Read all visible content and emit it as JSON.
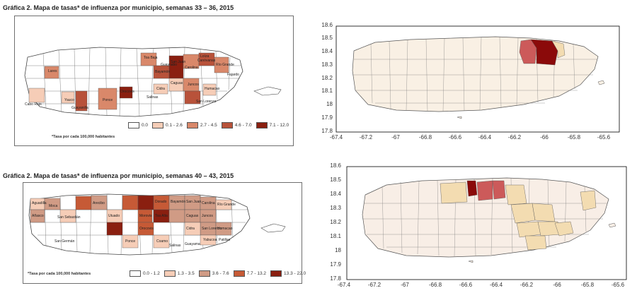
{
  "top": {
    "title": "Gráfica 2. Mapa de tasas* de influenza por municipio, semanas 33 – 36, 2015",
    "footnote": "*Tasa por cada 100,000 habitantes",
    "legend": [
      {
        "label": "0.0",
        "color": "#ffffff"
      },
      {
        "label": "0.1 - 2.6",
        "color": "#f6cdb7"
      },
      {
        "label": "2.7 - 4.5",
        "color": "#d9886a"
      },
      {
        "label": "4.6 - 7.0",
        "color": "#b8523a"
      },
      {
        "label": "7.1 - 12.0",
        "color": "#8a1f10"
      }
    ],
    "labels": [
      "Cabo Rojo",
      "Guayanilla",
      "Yauco",
      "Lares",
      "Ponce",
      "Orocovis",
      "Cidra",
      "Salinas",
      "Río Grande",
      "Fajardo",
      "Canóvanas",
      "Juncos",
      "San Juan",
      "Bayamón",
      "Caguas",
      "Guaynabo",
      "Carolina",
      "Loíza",
      "Humacao",
      "San Lorenzo",
      "Toa Baja"
    ],
    "right_map": {
      "yticks": [
        "18.6",
        "18.5",
        "18.4",
        "18.3",
        "18.2",
        "18.1",
        "18",
        "17.9",
        "17.8"
      ],
      "xticks": [
        "-67.4",
        "-67.2",
        "-67",
        "-66.8",
        "-66.6",
        "-66.4",
        "-66.2",
        "-66",
        "-65.8",
        "-65.6"
      ],
      "base_color": "#f9f0e4",
      "highlight_colors": [
        "#8b0a0a",
        "#cc5a5a",
        "#f3dcb1"
      ]
    }
  },
  "bottom": {
    "title": "Gráfica 2. Mapa de tasas* de influenza por municipio, semanas 40 – 43, 2015",
    "footnote": "*Tasa por cada 100,000 habitantes",
    "legend": [
      {
        "label": "0.0 - 1.2",
        "color": "#ffffff"
      },
      {
        "label": "1.3 - 3.5",
        "color": "#f6cdb7"
      },
      {
        "label": "3.6 - 7.6",
        "color": "#d09b85"
      },
      {
        "label": "7.7 - 13.2",
        "color": "#c65a36"
      },
      {
        "label": "13.3 - 22.0",
        "color": "#8a1f10"
      }
    ],
    "labels": [
      "Aguadilla",
      "Moca",
      "Añasco",
      "San Sebastián",
      "Arecibo",
      "Utuado",
      "San Germán",
      "Ponce",
      "Coamo",
      "Salinas",
      "Morovis",
      "Orocovis",
      "Bayamón",
      "San Juan",
      "Carolina",
      "Río Grande",
      "Guayama",
      "Caguas",
      "Humacao",
      "Yabucoa",
      "San Lorenzo",
      "Juncos",
      "Dorado",
      "Toa Alta",
      "Cidra",
      "Patillas"
    ],
    "right_map": {
      "yticks": [
        "18.6",
        "18.5",
        "18.4",
        "18.3",
        "18.2",
        "18.1",
        "18",
        "17.9",
        "17.8"
      ],
      "xticks": [
        "-67.4",
        "-67.2",
        "-67",
        "-66.8",
        "-66.6",
        "-66.4",
        "-66.2",
        "-66",
        "-65.8",
        "-65.6"
      ],
      "base_color": "#f8eee6",
      "highlight_colors": [
        "#8b0a0a",
        "#cc5a5a",
        "#f3dcb1"
      ]
    }
  }
}
